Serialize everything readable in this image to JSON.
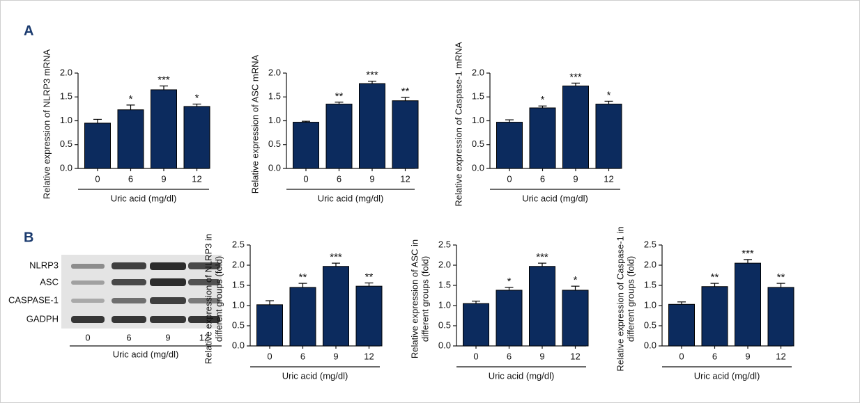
{
  "panels": [
    "A",
    "B"
  ],
  "blot": {
    "rows": [
      "NLRP3",
      "ASC",
      "CASPASE-1",
      "GADPH"
    ],
    "lanes": [
      "0",
      "6",
      "9",
      "12"
    ],
    "xlabel": "Uric acid (mg/dl)"
  },
  "chart_data": [
    {
      "type": "bar",
      "ylabel": [
        "Relative expression of NLRP3 mRNA"
      ],
      "xlabel": "Uric acid (mg/dl)",
      "categories": [
        "0",
        "6",
        "9",
        "12"
      ],
      "values": [
        0.95,
        1.23,
        1.65,
        1.3
      ],
      "errors": [
        0.08,
        0.1,
        0.08,
        0.05
      ],
      "annotations": [
        null,
        "*",
        "***",
        "*"
      ],
      "color": "#0c2b5e",
      "ylim": [
        0,
        2
      ],
      "yticks": [
        {
          "value": 0,
          "label": "0.0"
        },
        {
          "value": 0.5,
          "label": "0.5"
        },
        {
          "value": 1,
          "label": "1.0"
        },
        {
          "value": 1.5,
          "label": "1.5"
        },
        {
          "value": 2,
          "label": "2.0"
        }
      ]
    },
    {
      "type": "bar",
      "ylabel": [
        "Relative expression of ASC mRNA"
      ],
      "xlabel": "Uric acid (mg/dl)",
      "categories": [
        "0",
        "6",
        "9",
        "12"
      ],
      "values": [
        0.97,
        1.35,
        1.78,
        1.42
      ],
      "errors": [
        0.02,
        0.04,
        0.05,
        0.07
      ],
      "annotations": [
        null,
        "**",
        "***",
        "**"
      ],
      "color": "#0c2b5e",
      "ylim": [
        0,
        2
      ],
      "yticks": [
        {
          "value": 0,
          "label": "0.0"
        },
        {
          "value": 0.5,
          "label": "0.5"
        },
        {
          "value": 1,
          "label": "1.0"
        },
        {
          "value": 1.5,
          "label": "1.5"
        },
        {
          "value": 2,
          "label": "2.0"
        }
      ]
    },
    {
      "type": "bar",
      "ylabel": [
        "Relative expression of Caspase-1 mRNA"
      ],
      "xlabel": "Uric acid (mg/dl)",
      "categories": [
        "0",
        "6",
        "9",
        "12"
      ],
      "values": [
        0.97,
        1.27,
        1.73,
        1.35
      ],
      "errors": [
        0.05,
        0.04,
        0.06,
        0.06
      ],
      "annotations": [
        null,
        "*",
        "***",
        "*"
      ],
      "color": "#0c2b5e",
      "ylim": [
        0,
        2
      ],
      "yticks": [
        {
          "value": 0,
          "label": "0.0"
        },
        {
          "value": 0.5,
          "label": "0.5"
        },
        {
          "value": 1,
          "label": "1.0"
        },
        {
          "value": 1.5,
          "label": "1.5"
        },
        {
          "value": 2,
          "label": "2.0"
        }
      ]
    },
    {
      "type": "bar",
      "ylabel": [
        "Relative expression of NLRP3 in",
        "different groups (fold)"
      ],
      "xlabel": "Uric acid (mg/dl)",
      "categories": [
        "0",
        "6",
        "9",
        "12"
      ],
      "values": [
        1.02,
        1.45,
        1.97,
        1.48
      ],
      "errors": [
        0.1,
        0.1,
        0.08,
        0.08
      ],
      "annotations": [
        null,
        "**",
        "***",
        "**"
      ],
      "color": "#0c2b5e",
      "ylim": [
        0,
        2.5
      ],
      "yticks": [
        {
          "value": 0,
          "label": "0.0"
        },
        {
          "value": 0.5,
          "label": "0.5"
        },
        {
          "value": 1,
          "label": "1.0"
        },
        {
          "value": 1.5,
          "label": "1.5"
        },
        {
          "value": 2,
          "label": "2.0"
        },
        2.5
      ]
    },
    {
      "type": "bar",
      "ylabel": [
        "Relative expression of ASC in",
        "different groups (fold)"
      ],
      "xlabel": "Uric acid (mg/dl)",
      "categories": [
        "0",
        "6",
        "9",
        "12"
      ],
      "values": [
        1.05,
        1.38,
        1.97,
        1.38
      ],
      "errors": [
        0.06,
        0.07,
        0.08,
        0.1
      ],
      "annotations": [
        null,
        "*",
        "***",
        "*"
      ],
      "color": "#0c2b5e",
      "ylim": [
        0,
        2.5
      ],
      "yticks": [
        {
          "value": 0,
          "label": "0.0"
        },
        {
          "value": 0.5,
          "label": "0.5"
        },
        {
          "value": 1,
          "label": "1.0"
        },
        {
          "value": 1.5,
          "label": "1.5"
        },
        {
          "value": 2,
          "label": "2.0"
        },
        2.5
      ]
    },
    {
      "type": "bar",
      "ylabel": [
        "Relative expression of Caspase-1 in",
        "different groups (fold)"
      ],
      "xlabel": "Uric acid (mg/dl)",
      "categories": [
        "0",
        "6",
        "9",
        "12"
      ],
      "values": [
        1.03,
        1.47,
        2.05,
        1.45
      ],
      "errors": [
        0.06,
        0.08,
        0.09,
        0.1
      ],
      "annotations": [
        null,
        "**",
        "***",
        "**"
      ],
      "color": "#0c2b5e",
      "ylim": [
        0,
        2.5
      ],
      "yticks": [
        {
          "value": 0,
          "label": "0.0"
        },
        {
          "value": 0.5,
          "label": "0.5"
        },
        {
          "value": 1,
          "label": "1.0"
        },
        {
          "value": 1.5,
          "label": "1.5"
        },
        {
          "value": 2,
          "label": "2.0"
        },
        2.5
      ]
    }
  ]
}
